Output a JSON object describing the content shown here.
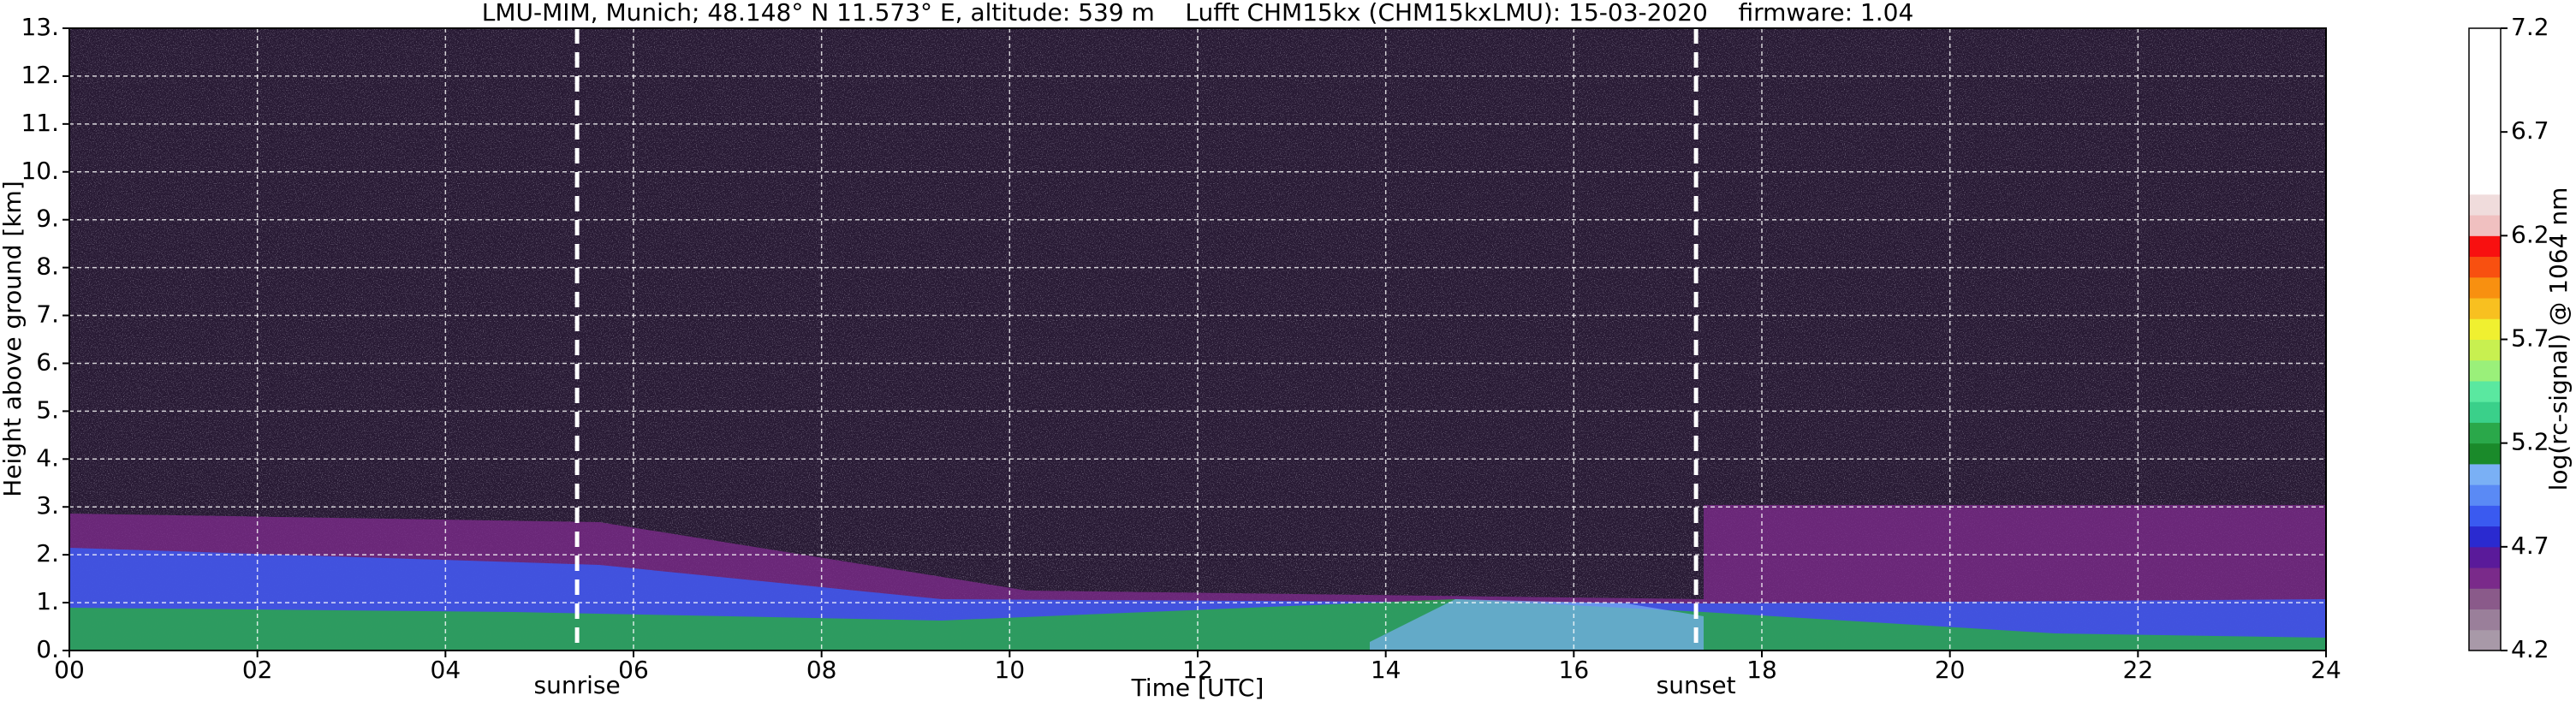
{
  "chart_data": {
    "type": "heatmap",
    "title": "LMU-MIM, Munich; 48.148° N 11.573° E, altitude: 539 m    Lufft CHM15kx (CHM15kxLMU): 15-03-2020    firmware: 1.04",
    "x_label": "Time [UTC]",
    "y_label": "Height above ground [km]",
    "xlim": [
      0,
      24
    ],
    "xticks": [
      {
        "value": 0,
        "label": "00"
      },
      {
        "value": 2,
        "label": "02"
      },
      {
        "value": 4,
        "label": "04"
      },
      {
        "value": 6,
        "label": "06"
      },
      {
        "value": 8,
        "label": "08"
      },
      {
        "value": 10,
        "label": "10"
      },
      {
        "value": 12,
        "label": "12"
      },
      {
        "value": 14,
        "label": "14"
      },
      {
        "value": 16,
        "label": "16"
      },
      {
        "value": 18,
        "label": "18"
      },
      {
        "value": 20,
        "label": "20"
      },
      {
        "value": 22,
        "label": "22"
      },
      {
        "value": 24,
        "label": "24"
      }
    ],
    "ylim": [
      0,
      13
    ],
    "yticks": [
      {
        "value": 0,
        "label": "0."
      },
      {
        "value": 1,
        "label": "1."
      },
      {
        "value": 2,
        "label": "2."
      },
      {
        "value": 3,
        "label": "3."
      },
      {
        "value": 4,
        "label": "4."
      },
      {
        "value": 5,
        "label": "5."
      },
      {
        "value": 6,
        "label": "6."
      },
      {
        "value": 7,
        "label": "7."
      },
      {
        "value": 8,
        "label": "8."
      },
      {
        "value": 9,
        "label": "9."
      },
      {
        "value": 10,
        "label": "10."
      },
      {
        "value": 11,
        "label": "11."
      },
      {
        "value": 12,
        "label": "12."
      },
      {
        "value": 13,
        "label": "13."
      }
    ],
    "grid": true,
    "markers": [
      {
        "label": "sunrise",
        "x": 5.4
      },
      {
        "label": "sunset",
        "x": 17.3
      }
    ],
    "colorbar": {
      "label": "log(rc-signal) @ 1064 nm",
      "lim": [
        4.2,
        7.2
      ],
      "ticks": [
        4.2,
        4.7,
        5.2,
        5.7,
        6.2,
        6.7,
        7.2
      ],
      "colors": [
        "#a899a8",
        "#9a7f9a",
        "#8a5a8a",
        "#7a2a8a",
        "#5a1a9a",
        "#2a2ad0",
        "#3a5af0",
        "#5a8af5",
        "#7ab0f5",
        "#1a8a2a",
        "#2aa84a",
        "#3ad08a",
        "#5ae8a0",
        "#9af07a",
        "#c8f050",
        "#f0f030",
        "#f8c020",
        "#f89010",
        "#f85010",
        "#f81010",
        "#f0c0c0",
        "#f0dcdc",
        "#ffffff",
        "#ffffff",
        "#ffffff",
        "#ffffff",
        "#ffffff",
        "#ffffff",
        "#ffffff",
        "#ffffff"
      ]
    }
  }
}
